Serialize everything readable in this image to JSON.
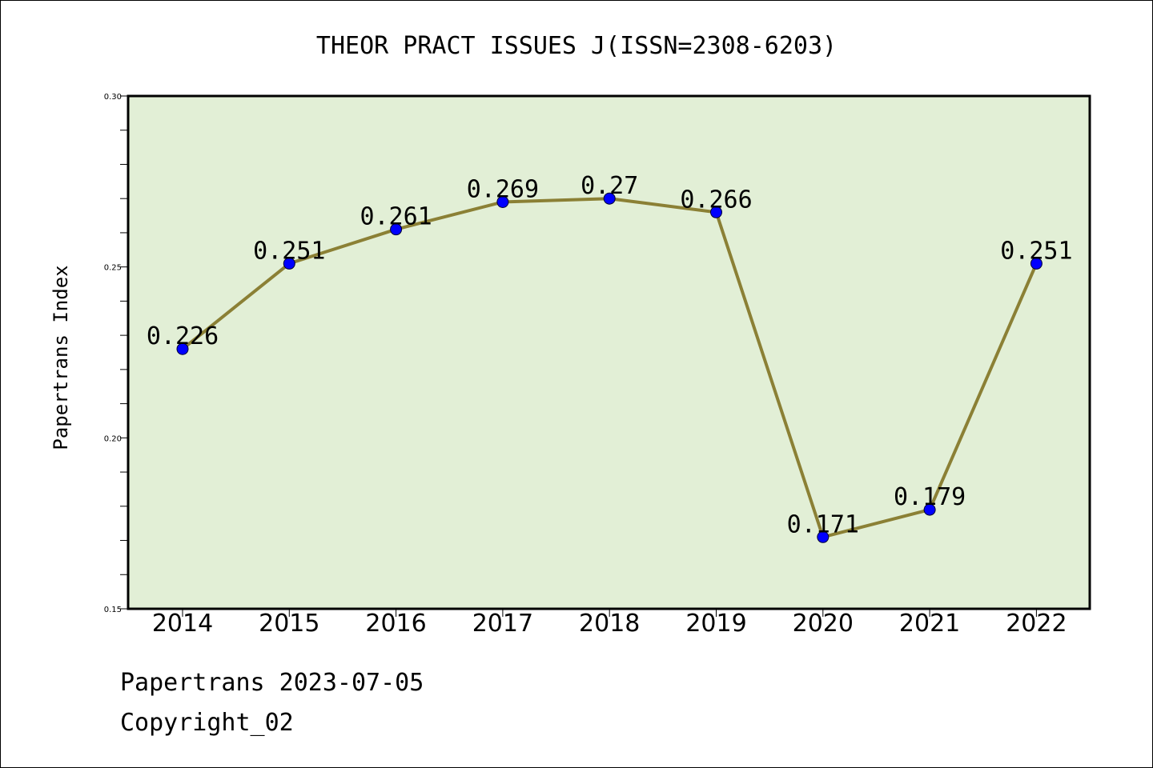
{
  "chart_data": {
    "type": "line",
    "title": "THEOR PRACT ISSUES J(ISSN=2308-6203)",
    "ylabel": "Papertrans Index",
    "xlabel": "",
    "categories": [
      "2014",
      "2015",
      "2016",
      "2017",
      "2018",
      "2019",
      "2020",
      "2021",
      "2022"
    ],
    "values": [
      0.226,
      0.251,
      0.261,
      0.269,
      0.27,
      0.266,
      0.171,
      0.179,
      0.251
    ],
    "data_labels": [
      "0.226",
      "0.251",
      "0.261",
      "0.269",
      "0.27",
      "0.266",
      "0.171",
      "0.179",
      "0.251"
    ],
    "ylim": [
      0.15,
      0.3
    ],
    "yticks": [
      "0.15",
      "0.20",
      "0.25",
      "0.30"
    ],
    "grid": false,
    "colors": {
      "plot_background": "#e2efd6",
      "line": "#8b8035",
      "marker": "#0000ff"
    }
  },
  "footer": {
    "date_line": "Papertrans 2023-07-05",
    "copyright": "Copyright_02"
  }
}
